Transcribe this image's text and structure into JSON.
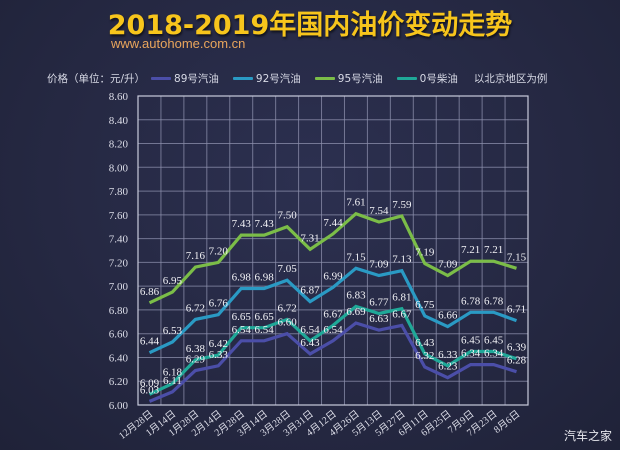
{
  "header": {
    "title": "2018-2019年国内油价变动走势",
    "url": "www.autohome.com.cn"
  },
  "legend": {
    "unit_label": "价格（单位：元/升）",
    "items": [
      {
        "label": "89号汽油",
        "color": "#4b4ea8"
      },
      {
        "label": "92号汽油",
        "color": "#2a9ac4"
      },
      {
        "label": "95号汽油",
        "color": "#7bbd48"
      },
      {
        "label": "0号柴油",
        "color": "#1fa898"
      }
    ],
    "note": "以北京地区为例"
  },
  "watermark": "汽车之家",
  "chart_data": {
    "type": "line",
    "title": "2018-2019年国内油价变动走势",
    "xlabel": "",
    "ylabel": "价格（单位：元/升）",
    "ylim": [
      6.0,
      8.6
    ],
    "yticks": [
      "6.00",
      "6.20",
      "6.40",
      "6.60",
      "6.80",
      "7.00",
      "7.20",
      "7.40",
      "7.60",
      "7.80",
      "8.00",
      "8.20",
      "8.40",
      "8.60"
    ],
    "grid": true,
    "legend_position": "top",
    "categories": [
      "12月28日",
      "1月14日",
      "1月28日",
      "2月14日",
      "2月28日",
      "3月14日",
      "3月28日",
      "3月31日",
      "4月12日",
      "4月26日",
      "5月13日",
      "5月27日",
      "6月11日",
      "6月25日",
      "7月9日",
      "7月23日",
      "8月6日"
    ],
    "series": [
      {
        "name": "89号汽油",
        "color": "#4b4ea8",
        "values": [
          6.03,
          6.11,
          6.29,
          6.33,
          6.54,
          6.54,
          6.6,
          6.43,
          6.54,
          6.69,
          6.63,
          6.67,
          6.32,
          6.23,
          6.34,
          6.34,
          6.28
        ]
      },
      {
        "name": "92号汽油",
        "color": "#2a9ac4",
        "values": [
          6.44,
          6.53,
          6.72,
          6.76,
          6.98,
          6.98,
          7.05,
          6.87,
          6.99,
          7.15,
          7.09,
          7.13,
          6.75,
          6.66,
          6.78,
          6.78,
          6.71
        ]
      },
      {
        "name": "95号汽油",
        "color": "#7bbd48",
        "values": [
          6.86,
          6.95,
          7.16,
          7.2,
          7.43,
          7.43,
          7.5,
          7.31,
          7.44,
          7.61,
          7.54,
          7.59,
          7.19,
          7.09,
          7.21,
          7.21,
          7.15
        ]
      },
      {
        "name": "0号柴油",
        "color": "#1fa898",
        "values": [
          6.09,
          6.18,
          6.38,
          6.42,
          6.65,
          6.65,
          6.72,
          6.54,
          6.67,
          6.83,
          6.77,
          6.81,
          6.43,
          6.33,
          6.45,
          6.45,
          6.39
        ]
      }
    ],
    "annotation": "以北京地区为例"
  }
}
